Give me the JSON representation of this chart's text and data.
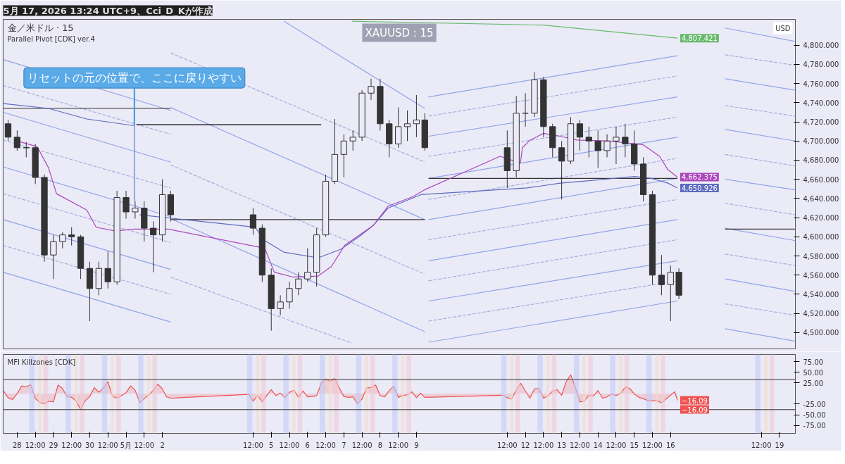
{
  "chart_data": [
    {
      "type": "candlestick",
      "title": "XAUUSD : 15",
      "subtitle": "金／米ドル · 15",
      "annotations": [
        "5月 17, 2026 13:24 UTC+9、Cci_D_Kが作成",
        "Parallel Pivot [CDK] ver.4",
        "USD",
        {
          "text": "リセットの元の位置で、ここに戻りやすい",
          "x": "2026-05-01T05:30",
          "y": 4717
        },
        {
          "text": "4,807.421",
          "x": "2026-05-16T04:30",
          "y": 4807.421
        },
        {
          "text": "4,662.375",
          "x": "2026-05-16T04:30",
          "y": 4662.375
        },
        {
          "text": "4,650.926",
          "x": "2026-05-16T04:30",
          "y": 4650.926
        }
      ],
      "x": [
        "2026-04-27T18:00",
        "2026-04-28",
        "2026-04-28T06:00",
        "2026-04-28T12:00",
        "2026-04-28T18:00",
        "2026-04-29",
        "2026-04-29T06:00",
        "2026-04-29T12:00",
        "2026-04-29T18:00",
        "2026-04-30",
        "2026-04-30T06:00",
        "2026-04-30T12:00",
        "2026-04-30T18:00",
        "2026-05-01",
        "2026-05-01T06:00",
        "2026-05-01T12:00",
        "2026-05-01T18:00",
        "2026-05-02",
        "2026-05-02T05:30",
        "2026-05-04T12:00",
        "2026-05-04T18:00",
        "2026-05-05",
        "2026-05-05T06:00",
        "2026-05-05T12:00",
        "2026-05-05T18:00",
        "2026-05-06",
        "2026-05-06T06:00",
        "2026-05-06T12:00",
        "2026-05-06T18:00",
        "2026-05-07",
        "2026-05-07T06:00",
        "2026-05-07T12:00",
        "2026-05-07T18:00",
        "2026-05-08",
        "2026-05-08T06:00",
        "2026-05-08T12:00",
        "2026-05-08T18:00",
        "2026-05-09",
        "2026-05-09T05:30",
        "2026-05-11T12:00",
        "2026-05-11T18:00",
        "2026-05-12",
        "2026-05-12T06:00",
        "2026-05-12T12:00",
        "2026-05-12T18:00",
        "2026-05-13",
        "2026-05-13T06:00",
        "2026-05-13T12:00",
        "2026-05-13T18:00",
        "2026-05-14",
        "2026-05-14T06:00",
        "2026-05-14T12:00",
        "2026-05-14T18:00",
        "2026-05-15",
        "2026-05-15T06:00",
        "2026-05-15T12:00",
        "2026-05-15T18:00",
        "2026-05-16",
        "2026-05-16T05:30"
      ],
      "ohlc": [
        [
          4718,
          4722,
          4700,
          4704
        ],
        [
          4704,
          4711,
          4690,
          4693
        ],
        [
          4693,
          4699,
          4683,
          4693
        ],
        [
          4693,
          4697,
          4655,
          4662
        ],
        [
          4662,
          4665,
          4574,
          4581
        ],
        [
          4581,
          4602,
          4556,
          4595
        ],
        [
          4595,
          4605,
          4588,
          4602
        ],
        [
          4602,
          4610,
          4591,
          4600
        ],
        [
          4600,
          4602,
          4556,
          4567
        ],
        [
          4567,
          4574,
          4512,
          4546
        ],
        [
          4546,
          4574,
          4539,
          4567
        ],
        [
          4567,
          4585,
          4546,
          4553
        ],
        [
          4553,
          4648,
          4550,
          4641
        ],
        [
          4641,
          4648,
          4619,
          4626
        ],
        [
          4626,
          4637,
          4619,
          4630
        ],
        [
          4630,
          4637,
          4595,
          4609
        ],
        [
          4609,
          4616,
          4563,
          4602
        ],
        [
          4602,
          4660,
          4595,
          4644
        ],
        [
          4644,
          4648,
          4616,
          4623
        ],
        [
          4623,
          4630,
          4602,
          4609
        ],
        [
          4609,
          4613,
          4553,
          4560
        ],
        [
          4560,
          4567,
          4502,
          4525
        ],
        [
          4525,
          4539,
          4518,
          4532
        ],
        [
          4532,
          4553,
          4525,
          4546
        ],
        [
          4546,
          4563,
          4539,
          4556
        ],
        [
          4556,
          4588,
          4553,
          4563
        ],
        [
          4563,
          4609,
          4548,
          4602
        ],
        [
          4602,
          4665,
          4600,
          4658
        ],
        [
          4658,
          4723,
          4655,
          4686
        ],
        [
          4686,
          4707,
          4662,
          4700
        ],
        [
          4700,
          4711,
          4690,
          4704
        ],
        [
          4704,
          4753,
          4700,
          4750
        ],
        [
          4750,
          4765,
          4743,
          4757
        ],
        [
          4757,
          4765,
          4711,
          4718
        ],
        [
          4718,
          4722,
          4683,
          4697
        ],
        [
          4697,
          4735,
          4693,
          4715
        ],
        [
          4715,
          4732,
          4700,
          4718
        ],
        [
          4718,
          4748,
          4704,
          4722
        ],
        [
          4722,
          4729,
          4690,
          4693
        ],
        [
          4693,
          4711,
          4651,
          4669
        ],
        [
          4669,
          4747,
          4662,
          4729
        ],
        [
          4729,
          4750,
          4715,
          4729
        ],
        [
          4729,
          4772,
          4725,
          4764
        ],
        [
          4764,
          4767,
          4704,
          4715
        ],
        [
          4715,
          4718,
          4683,
          4693
        ],
        [
          4693,
          4700,
          4639,
          4679
        ],
        [
          4679,
          4725,
          4676,
          4718
        ],
        [
          4718,
          4722,
          4690,
          4704
        ],
        [
          4704,
          4715,
          4683,
          4700
        ],
        [
          4700,
          4711,
          4672,
          4690
        ],
        [
          4690,
          4707,
          4683,
          4700
        ],
        [
          4700,
          4715,
          4676,
          4704
        ],
        [
          4704,
          4718,
          4683,
          4697
        ],
        [
          4697,
          4711,
          4669,
          4676
        ],
        [
          4676,
          4683,
          4637,
          4644
        ],
        [
          4644,
          4648,
          4550,
          4560
        ],
        [
          4560,
          4581,
          4539,
          4550
        ],
        [
          4550,
          4570,
          4512,
          4563
        ],
        [
          4563,
          4567,
          4535,
          4539
        ]
      ],
      "color": "#333333",
      "series": [
        {
          "type": "line",
          "color": "#8fa6ea",
          "x": [
            "2026-04-27T14:45",
            "2026-05-02T05:30"
          ],
          "values": [
            4785,
            4732
          ]
        },
        {
          "type": "line",
          "color": "#8fa6ea",
          "x": [
            "2026-04-27T14:45",
            "2026-05-02T05:30"
          ],
          "values": [
            4730,
            4678
          ]
        },
        {
          "type": "line",
          "color": "#8fa6ea",
          "x": [
            "2026-04-27T14:45",
            "2026-05-02T05:30"
          ],
          "values": [
            4673,
            4621
          ]
        },
        {
          "type": "line",
          "color": "#8fa6ea",
          "x": [
            "2026-04-27T14:45",
            "2026-05-02T05:30"
          ],
          "values": [
            4618,
            4566
          ]
        },
        {
          "type": "line",
          "color": "#8fa6ea",
          "x": [
            "2026-04-27T14:45",
            "2026-05-02T05:30"
          ],
          "values": [
            4563,
            4511
          ]
        },
        {
          "type": "line",
          "color": "#8fa6ea",
          "x": [
            "2026-05-05T08:30",
            "2026-05-09T05:30"
          ],
          "values": [
            4825,
            4734
          ]
        },
        {
          "type": "line",
          "color": "#8fa6ea",
          "x": [
            "2026-05-02T05:30",
            "2026-05-09T05:30"
          ],
          "values": [
            4735,
            4618
          ]
        },
        {
          "type": "line",
          "color": "#8fa6ea",
          "x": [
            "2026-05-02T05:30",
            "2026-05-09T05:30"
          ],
          "values": [
            4619,
            4501
          ]
        },
        {
          "type": "line",
          "color": "#8fa6ea",
          "x": [
            "2026-05-09T08:00",
            "2026-05-16T04:30"
          ],
          "values": [
            4746,
            4789
          ]
        },
        {
          "type": "line",
          "color": "#8fa6ea",
          "x": [
            "2026-05-09T08:00",
            "2026-05-16T04:30"
          ],
          "values": [
            4705,
            4746
          ]
        },
        {
          "type": "line",
          "color": "#8fa6ea",
          "x": [
            "2026-05-09T08:00",
            "2026-05-16T04:30"
          ],
          "values": [
            4661,
            4704
          ]
        },
        {
          "type": "line",
          "color": "#8fa6ea",
          "x": [
            "2026-05-09T08:00",
            "2026-05-16T04:30"
          ],
          "values": [
            4618,
            4661
          ]
        },
        {
          "type": "line",
          "color": "#8fa6ea",
          "x": [
            "2026-05-09T08:00",
            "2026-05-16T04:30"
          ],
          "values": [
            4575,
            4618
          ]
        },
        {
          "type": "line",
          "color": "#8fa6ea",
          "x": [
            "2026-05-09T08:00",
            "2026-05-16T04:30"
          ],
          "values": [
            4533,
            4575
          ]
        },
        {
          "type": "line",
          "color": "#8fa6ea",
          "x": [
            "2026-05-09T08:00",
            "2026-05-16T04:30"
          ],
          "values": [
            4490,
            4533
          ]
        },
        {
          "type": "line",
          "color": "#8fa6ea",
          "x": [
            "2026-05-17T12:00",
            "2026-05-19T10:30"
          ],
          "values": [
            4818,
            4804
          ]
        },
        {
          "type": "line",
          "color": "#8fa6ea",
          "x": [
            "2026-05-17T12:00",
            "2026-05-19T10:30"
          ],
          "values": [
            4765,
            4753
          ]
        },
        {
          "type": "line",
          "color": "#8fa6ea",
          "x": [
            "2026-05-17T12:00",
            "2026-05-19T10:30"
          ],
          "values": [
            4712,
            4700
          ]
        },
        {
          "type": "line",
          "color": "#8fa6ea",
          "x": [
            "2026-05-17T12:00",
            "2026-05-19T10:30"
          ],
          "values": [
            4660,
            4649
          ]
        },
        {
          "type": "line",
          "color": "#8fa6ea",
          "x": [
            "2026-05-17T12:00",
            "2026-05-19T10:30"
          ],
          "values": [
            4609,
            4596
          ]
        },
        {
          "type": "line",
          "color": "#8fa6ea",
          "x": [
            "2026-05-17T12:00",
            "2026-05-19T10:30"
          ],
          "values": [
            4556,
            4543
          ]
        },
        {
          "type": "line",
          "color": "#8fa6ea",
          "x": [
            "2026-05-17T12:00",
            "2026-05-19T10:30"
          ],
          "values": [
            4504,
            4491
          ]
        },
        {
          "type": "line",
          "color": "#a3afde",
          "line_style": "dashed",
          "x": [
            "2026-04-27T14:45",
            "2026-05-02T05:30"
          ],
          "values": [
            4758,
            4707
          ]
        },
        {
          "type": "line",
          "color": "#a3afde",
          "line_style": "dashed",
          "x": [
            "2026-04-27T14:45",
            "2026-05-02T05:30"
          ],
          "values": [
            4701,
            4651
          ]
        },
        {
          "type": "line",
          "color": "#a3afde",
          "line_style": "dashed",
          "x": [
            "2026-04-27T14:45",
            "2026-05-02T05:30"
          ],
          "values": [
            4645,
            4594
          ]
        },
        {
          "type": "line",
          "color": "#a3afde",
          "line_style": "dashed",
          "x": [
            "2026-04-27T14:45",
            "2026-05-02T05:30"
          ],
          "values": [
            4591,
            4540
          ]
        },
        {
          "type": "line",
          "color": "#a3afde",
          "line_style": "dashed",
          "x": [
            "2026-05-02T05:30",
            "2026-05-09T05:30"
          ],
          "values": [
            4792,
            4678
          ]
        },
        {
          "type": "line",
          "color": "#a3afde",
          "line_style": "dashed",
          "x": [
            "2026-05-02T05:30",
            "2026-05-09T05:30"
          ],
          "values": [
            4675,
            4561
          ]
        },
        {
          "type": "line",
          "color": "#a3afde",
          "line_style": "dashed",
          "x": [
            "2026-05-02T05:30",
            "2026-05-07T05:15"
          ],
          "values": [
            4558,
            4489
          ]
        },
        {
          "type": "line",
          "color": "#a3afde",
          "line_style": "dashed",
          "x": [
            "2026-05-09T08:00",
            "2026-05-16T04:30"
          ],
          "values": [
            4726,
            4768
          ]
        },
        {
          "type": "line",
          "color": "#a3afde",
          "line_style": "dashed",
          "x": [
            "2026-05-09T08:00",
            "2026-05-16T04:30"
          ],
          "values": [
            4684,
            4725
          ]
        },
        {
          "type": "line",
          "color": "#a3afde",
          "line_style": "dashed",
          "x": [
            "2026-05-09T08:00",
            "2026-05-16T04:30"
          ],
          "values": [
            4639,
            4682
          ]
        },
        {
          "type": "line",
          "color": "#a3afde",
          "line_style": "dashed",
          "x": [
            "2026-05-09T08:00",
            "2026-05-16T04:30"
          ],
          "values": [
            4597,
            4639
          ]
        },
        {
          "type": "line",
          "color": "#a3afde",
          "line_style": "dashed",
          "x": [
            "2026-05-09T08:00",
            "2026-05-16T04:30"
          ],
          "values": [
            4554,
            4597
          ]
        },
        {
          "type": "line",
          "color": "#a3afde",
          "line_style": "dashed",
          "x": [
            "2026-05-09T08:00",
            "2026-05-16T04:30"
          ],
          "values": [
            4512,
            4554
          ]
        },
        {
          "type": "line",
          "color": "#a3afde",
          "line_style": "dashed",
          "x": [
            "2026-05-17T12:00",
            "2026-05-19T10:30"
          ],
          "values": [
            4790,
            4779
          ]
        },
        {
          "type": "line",
          "color": "#a3afde",
          "line_style": "dashed",
          "x": [
            "2026-05-17T12:00",
            "2026-05-19T10:30"
          ],
          "values": [
            4737,
            4726
          ]
        },
        {
          "type": "line",
          "color": "#a3afde",
          "line_style": "dashed",
          "x": [
            "2026-05-17T12:00",
            "2026-05-19T10:30"
          ],
          "values": [
            4686,
            4674
          ]
        },
        {
          "type": "line",
          "color": "#a3afde",
          "line_style": "dashed",
          "x": [
            "2026-05-17T12:00",
            "2026-05-19T10:30"
          ],
          "values": [
            4635,
            4623
          ]
        },
        {
          "type": "line",
          "color": "#a3afde",
          "line_style": "dashed",
          "x": [
            "2026-05-17T12:00",
            "2026-05-19T10:30"
          ],
          "values": [
            4582,
            4570
          ]
        },
        {
          "type": "line",
          "color": "#a3afde",
          "line_style": "dashed",
          "x": [
            "2026-05-17T12:00",
            "2026-05-19T10:30"
          ],
          "values": [
            4530,
            4518
          ]
        },
        {
          "type": "line",
          "color": "#333333",
          "x": [
            "2026-04-27T14:45",
            "2026-05-02T05:30"
          ],
          "values": [
            4734,
            4734
          ]
        },
        {
          "type": "line",
          "color": "#333333",
          "x": [
            "2026-05-02T05:30",
            "2026-05-09T05:30"
          ],
          "values": [
            4618,
            4618
          ]
        },
        {
          "type": "line",
          "color": "#333333",
          "x": [
            "2026-05-09T08:00",
            "2026-05-16T04:30"
          ],
          "values": [
            4661,
            4661
          ]
        },
        {
          "type": "line",
          "color": "#333333",
          "x": [
            "2026-05-17T12:00",
            "2026-05-19T10:30"
          ],
          "values": [
            4608,
            4608
          ]
        },
        {
          "type": "line",
          "color": "#5a7ad8",
          "x": [
            "2026-05-01T05:30",
            "2026-05-01T05:30"
          ],
          "values": [
            4717,
            4637
          ]
        },
        {
          "type": "line",
          "color": "#000000",
          "x": [
            "2026-05-01T07:00",
            "2026-05-06T09:00"
          ],
          "values": [
            4717,
            4717
          ]
        },
        {
          "type": "line",
          "color": "#66bb6a",
          "x": [
            "2026-05-07T05:15",
            "2026-05-12T12:00",
            "2026-05-16T04:30"
          ],
          "values": [
            4825,
            4821,
            4807.421
          ]
        },
        {
          "type": "line",
          "color": "#5c6bc0",
          "x": [
            "2026-04-27T15:00",
            "2026-04-28T20:45",
            "2026-04-29T22:00",
            "2026-05-01T05:30"
          ],
          "values": [
            4739,
            4734,
            4723,
            4716
          ]
        },
        {
          "type": "line",
          "color": "#5c6bc0",
          "x": [
            "2026-05-01T09:00",
            "2026-05-04T13:15",
            "2026-05-04T19:45",
            "2026-05-05T08:15",
            "2026-05-06T07:00",
            "2026-05-06T22:00",
            "2026-05-07T10:45",
            "2026-05-07T19:30",
            "2026-05-08T05:15",
            "2026-05-09T03:00",
            "2026-05-12T01:15",
            "2026-05-12T23:00",
            "2026-05-13T21:00",
            "2026-05-15T00:15",
            "2026-05-15T11:30",
            "2026-05-15T22:15",
            "2026-05-16T04:30"
          ],
          "values": [
            4623,
            4610,
            4596,
            4584,
            4578,
            4587,
            4601,
            4612,
            4630,
            4644,
            4651,
            4656,
            4659,
            4663,
            4661,
            4656,
            4650.926
          ]
        },
        {
          "type": "line",
          "color": "#ab47bc",
          "x": [
            "2026-04-27T22:00",
            "2026-04-28T13:15",
            "2026-04-28T20:45",
            "2026-04-29T02:00",
            "2026-04-29T22:00",
            "2026-04-30T04:15",
            "2026-04-30T17:00",
            "2026-05-01T05:30",
            "2026-05-02T04:00",
            "2026-05-04T19:45",
            "2026-05-05T02:00",
            "2026-05-05T14:30",
            "2026-05-06T07:00",
            "2026-05-06T15:45",
            "2026-05-07T00:30",
            "2026-05-07T19:30",
            "2026-05-08T05:15",
            "2026-05-08T21:45",
            "2026-05-09T05:15",
            "2026-05-11T07:15",
            "2026-05-11T20:45",
            "2026-05-11T22:00",
            "2026-05-12T03:15",
            "2026-05-12T12:00",
            "2026-05-12T23:00",
            "2026-05-13T10:15",
            "2026-05-14T08:00",
            "2026-05-15T06:00",
            "2026-05-15T16:45",
            "2026-05-15T22:15",
            "2026-05-16T04:30"
          ],
          "values": [
            4701,
            4694,
            4672,
            4645,
            4628,
            4610,
            4606,
            4608,
            4608,
            4588,
            4563,
            4558,
            4559,
            4569,
            4591,
            4612,
            4632,
            4642,
            4649,
            4684,
            4677,
            4693,
            4701,
            4708,
            4705,
            4701,
            4700,
            4696,
            4684,
            4670,
            4662.375
          ]
        }
      ],
      "xlim": [
        "2026-04-27T14:45",
        "2026-05-19T10:30"
      ],
      "ylim": [
        4483,
        4827
      ],
      "yticks": [
        {
          "value": 4500,
          "label": "4,500.000"
        },
        {
          "value": 4520,
          "label": "4,520.000"
        },
        {
          "value": 4540,
          "label": "4,540.000"
        },
        {
          "value": 4560,
          "label": "4,560.000"
        },
        {
          "value": 4580,
          "label": "4,580.000"
        },
        {
          "value": 4600,
          "label": "4,600.000"
        },
        {
          "value": 4620,
          "label": "4,620.000"
        },
        {
          "value": 4640,
          "label": "4,640.000"
        },
        {
          "value": 4660,
          "label": "4,660.000"
        },
        {
          "value": 4680,
          "label": "4,680.000"
        },
        {
          "value": 4700,
          "label": "4,700.000"
        },
        {
          "value": 4720,
          "label": "4,720.000"
        },
        {
          "value": 4740,
          "label": "4,740.000"
        },
        {
          "value": 4760,
          "label": "4,760.000"
        },
        {
          "value": 4780,
          "label": "4,780.000"
        },
        {
          "value": 4800,
          "label": "4,800.000"
        }
      ],
      "tick_labels": "y"
    },
    {
      "type": "area",
      "title": "MFI Killzones [CDK]",
      "annotations": [
        "−16.09",
        "−16.09"
      ],
      "series": [
        {
          "color": "#ef5350",
          "x": [
            "2026-04-27T15:00",
            "2026-04-27T18:00",
            "2026-04-27T21:00",
            "2026-04-28T00:00",
            "2026-04-28T03:00",
            "2026-04-28T06:00",
            "2026-04-28T09:00",
            "2026-04-28T12:00",
            "2026-04-28T15:00",
            "2026-04-28T18:00",
            "2026-04-28T21:00",
            "2026-04-29T00:00",
            "2026-04-29T03:00",
            "2026-04-29T06:00",
            "2026-04-29T09:00",
            "2026-04-29T12:00",
            "2026-04-29T15:00",
            "2026-04-29T18:00",
            "2026-04-29T21:00",
            "2026-04-30T00:00",
            "2026-04-30T03:00",
            "2026-04-30T06:00",
            "2026-04-30T09:00",
            "2026-04-30T12:00",
            "2026-04-30T15:00",
            "2026-04-30T18:00",
            "2026-04-30T21:00",
            "2026-05-01T00:00",
            "2026-05-01T03:00",
            "2026-05-01T06:00",
            "2026-05-01T09:00",
            "2026-05-01T12:00",
            "2026-05-01T15:00",
            "2026-05-01T18:00",
            "2026-05-01T21:00",
            "2026-05-02T00:00",
            "2026-05-02T02:45",
            "2026-05-02T05:30",
            "2026-05-04T09:15",
            "2026-05-04T12:00",
            "2026-05-04T15:00",
            "2026-05-04T18:00",
            "2026-05-04T21:00",
            "2026-05-05T00:00",
            "2026-05-05T03:00",
            "2026-05-05T06:00",
            "2026-05-05T09:00",
            "2026-05-05T12:00",
            "2026-05-05T15:00",
            "2026-05-05T18:00",
            "2026-05-05T21:00",
            "2026-05-06T00:00",
            "2026-05-06T03:00",
            "2026-05-06T06:00",
            "2026-05-06T09:00",
            "2026-05-06T12:00",
            "2026-05-06T15:00",
            "2026-05-06T18:00",
            "2026-05-06T21:00",
            "2026-05-07T00:00",
            "2026-05-07T03:00",
            "2026-05-07T06:00",
            "2026-05-07T09:00",
            "2026-05-07T12:00",
            "2026-05-07T15:00",
            "2026-05-07T18:00",
            "2026-05-07T21:00",
            "2026-05-08T00:00",
            "2026-05-08T03:00",
            "2026-05-08T06:00",
            "2026-05-08T09:00",
            "2026-05-08T12:00",
            "2026-05-08T15:00",
            "2026-05-08T18:00",
            "2026-05-08T21:00",
            "2026-05-09T00:00",
            "2026-05-09T02:45",
            "2026-05-09T05:30",
            "2026-05-11T09:15",
            "2026-05-11T12:00",
            "2026-05-11T15:00",
            "2026-05-11T18:00",
            "2026-05-11T21:00",
            "2026-05-12T00:00",
            "2026-05-12T03:00",
            "2026-05-12T06:00",
            "2026-05-12T09:00",
            "2026-05-12T12:00",
            "2026-05-12T15:00",
            "2026-05-12T18:00",
            "2026-05-12T21:00",
            "2026-05-13T00:00",
            "2026-05-13T03:00",
            "2026-05-13T06:00",
            "2026-05-13T09:00",
            "2026-05-13T12:00",
            "2026-05-13T15:00",
            "2026-05-13T18:00",
            "2026-05-13T21:00",
            "2026-05-14T00:00",
            "2026-05-14T03:00",
            "2026-05-14T06:00",
            "2026-05-14T09:00",
            "2026-05-14T12:00",
            "2026-05-14T15:00",
            "2026-05-14T18:00",
            "2026-05-14T21:00",
            "2026-05-15T00:00",
            "2026-05-15T03:00",
            "2026-05-15T06:00",
            "2026-05-15T09:00",
            "2026-05-15T12:00",
            "2026-05-15T15:00",
            "2026-05-15T18:00",
            "2026-05-15T21:00",
            "2026-05-16T00:00",
            "2026-05-16T02:45",
            "2026-05-16T04:30"
          ],
          "values": [
            6,
            -10,
            -14,
            0,
            18,
            16,
            21,
            -12,
            -21,
            -24,
            -18,
            -20,
            20,
            12,
            -8,
            -9,
            -18,
            -38,
            -17,
            -7,
            14,
            3,
            13,
            28,
            -7,
            -11,
            -5,
            2,
            18,
            8,
            -22,
            -12,
            -4,
            8,
            22,
            11,
            -8,
            -11,
            -2,
            -18,
            -5,
            -20,
            -5,
            9,
            -5,
            1,
            -10,
            3,
            8,
            -9,
            6,
            -8,
            -7,
            -5,
            24,
            34,
            29,
            36,
            13,
            -7,
            -9,
            -8,
            -24,
            -13,
            13,
            14,
            20,
            -5,
            -8,
            7,
            17,
            -9,
            -5,
            -3,
            4,
            -10,
            1,
            -9,
            -4,
            -10,
            -13,
            9,
            24,
            6,
            -11,
            11,
            12,
            -11,
            -6,
            6,
            9,
            -4,
            28,
            44,
            15,
            -20,
            -18,
            -4,
            -6,
            7,
            -11,
            -8,
            -1,
            -5,
            1,
            15,
            12,
            -1,
            -9,
            -12,
            -17,
            -17,
            -17,
            -22,
            -13,
            -4,
            4,
            -16.09
          ]
        }
      ],
      "ref_lines": [
        {
          "axis": "y",
          "value": 33,
          "color": "#333333"
        },
        {
          "axis": "y",
          "value": -38,
          "color": "#333333"
        }
      ],
      "bands": [
        {
          "axis": "x",
          "from": "2026-04-28T08:00",
          "to": "2026-04-28T11:30",
          "color": "#c3ccf5"
        },
        {
          "axis": "x",
          "from": "2026-04-28T14:00",
          "to": "2026-04-28T16:00",
          "color": "#f3dcc6"
        },
        {
          "axis": "x",
          "from": "2026-04-28T17:30",
          "to": "2026-04-28T20:30",
          "color": "#f0c9d4"
        },
        {
          "axis": "x",
          "from": "2026-04-29T08:00",
          "to": "2026-04-29T11:30",
          "color": "#c3ccf5"
        },
        {
          "axis": "x",
          "from": "2026-04-29T14:00",
          "to": "2026-04-29T16:00",
          "color": "#f3dcc6"
        },
        {
          "axis": "x",
          "from": "2026-04-29T17:30",
          "to": "2026-04-29T20:30",
          "color": "#f0c9d4"
        },
        {
          "axis": "x",
          "from": "2026-04-30T08:00",
          "to": "2026-04-30T11:30",
          "color": "#c3ccf5"
        },
        {
          "axis": "x",
          "from": "2026-04-30T14:00",
          "to": "2026-04-30T16:00",
          "color": "#f3dcc6"
        },
        {
          "axis": "x",
          "from": "2026-04-30T17:30",
          "to": "2026-04-30T20:30",
          "color": "#f0c9d4"
        },
        {
          "axis": "x",
          "from": "2026-05-01T08:00",
          "to": "2026-05-01T11:30",
          "color": "#c3ccf5"
        },
        {
          "axis": "x",
          "from": "2026-05-01T14:00",
          "to": "2026-05-01T16:00",
          "color": "#f3dcc6"
        },
        {
          "axis": "x",
          "from": "2026-05-01T17:30",
          "to": "2026-05-01T20:30",
          "color": "#f0c9d4"
        },
        {
          "axis": "x",
          "from": "2026-05-04T08:00",
          "to": "2026-05-04T11:30",
          "color": "#c3ccf5"
        },
        {
          "axis": "x",
          "from": "2026-05-04T14:00",
          "to": "2026-05-04T16:00",
          "color": "#f3dcc6"
        },
        {
          "axis": "x",
          "from": "2026-05-04T17:30",
          "to": "2026-05-04T20:30",
          "color": "#f0c9d4"
        },
        {
          "axis": "x",
          "from": "2026-05-05T08:00",
          "to": "2026-05-05T11:30",
          "color": "#c3ccf5"
        },
        {
          "axis": "x",
          "from": "2026-05-05T14:00",
          "to": "2026-05-05T16:00",
          "color": "#f3dcc6"
        },
        {
          "axis": "x",
          "from": "2026-05-05T17:30",
          "to": "2026-05-05T20:30",
          "color": "#f0c9d4"
        },
        {
          "axis": "x",
          "from": "2026-05-06T08:00",
          "to": "2026-05-06T11:30",
          "color": "#c3ccf5"
        },
        {
          "axis": "x",
          "from": "2026-05-06T14:00",
          "to": "2026-05-06T16:00",
          "color": "#f3dcc6"
        },
        {
          "axis": "x",
          "from": "2026-05-06T17:30",
          "to": "2026-05-06T20:30",
          "color": "#f0c9d4"
        },
        {
          "axis": "x",
          "from": "2026-05-07T08:00",
          "to": "2026-05-07T11:30",
          "color": "#c3ccf5"
        },
        {
          "axis": "x",
          "from": "2026-05-07T14:00",
          "to": "2026-05-07T16:00",
          "color": "#f3dcc6"
        },
        {
          "axis": "x",
          "from": "2026-05-07T17:30",
          "to": "2026-05-07T20:30",
          "color": "#f0c9d4"
        },
        {
          "axis": "x",
          "from": "2026-05-08T08:00",
          "to": "2026-05-08T11:30",
          "color": "#c3ccf5"
        },
        {
          "axis": "x",
          "from": "2026-05-08T14:00",
          "to": "2026-05-08T16:00",
          "color": "#f3dcc6"
        },
        {
          "axis": "x",
          "from": "2026-05-08T17:30",
          "to": "2026-05-08T20:30",
          "color": "#f0c9d4"
        },
        {
          "axis": "x",
          "from": "2026-05-11T08:00",
          "to": "2026-05-11T11:30",
          "color": "#c3ccf5"
        },
        {
          "axis": "x",
          "from": "2026-05-11T14:00",
          "to": "2026-05-11T16:00",
          "color": "#f3dcc6"
        },
        {
          "axis": "x",
          "from": "2026-05-11T17:30",
          "to": "2026-05-11T20:30",
          "color": "#f0c9d4"
        },
        {
          "axis": "x",
          "from": "2026-05-12T08:00",
          "to": "2026-05-12T11:30",
          "color": "#c3ccf5"
        },
        {
          "axis": "x",
          "from": "2026-05-12T14:00",
          "to": "2026-05-12T16:00",
          "color": "#f3dcc6"
        },
        {
          "axis": "x",
          "from": "2026-05-12T17:30",
          "to": "2026-05-12T20:30",
          "color": "#f0c9d4"
        },
        {
          "axis": "x",
          "from": "2026-05-13T08:00",
          "to": "2026-05-13T11:30",
          "color": "#c3ccf5"
        },
        {
          "axis": "x",
          "from": "2026-05-13T14:00",
          "to": "2026-05-13T16:00",
          "color": "#f3dcc6"
        },
        {
          "axis": "x",
          "from": "2026-05-13T17:30",
          "to": "2026-05-13T20:30",
          "color": "#f0c9d4"
        },
        {
          "axis": "x",
          "from": "2026-05-14T08:00",
          "to": "2026-05-14T11:30",
          "color": "#c3ccf5"
        },
        {
          "axis": "x",
          "from": "2026-05-14T14:00",
          "to": "2026-05-14T16:00",
          "color": "#f3dcc6"
        },
        {
          "axis": "x",
          "from": "2026-05-14T17:30",
          "to": "2026-05-14T20:30",
          "color": "#f0c9d4"
        },
        {
          "axis": "x",
          "from": "2026-05-15T08:00",
          "to": "2026-05-15T11:30",
          "color": "#c3ccf5"
        },
        {
          "axis": "x",
          "from": "2026-05-15T14:00",
          "to": "2026-05-15T16:00",
          "color": "#f3dcc6"
        },
        {
          "axis": "x",
          "from": "2026-05-15T17:30",
          "to": "2026-05-15T20:30",
          "color": "#f0c9d4"
        },
        {
          "axis": "x",
          "from": "2026-05-18T08:00",
          "to": "2026-05-18T11:30",
          "color": "#c3ccf5"
        },
        {
          "axis": "x",
          "from": "2026-05-18T14:00",
          "to": "2026-05-18T16:00",
          "color": "#f3dcc6"
        },
        {
          "axis": "x",
          "from": "2026-05-18T17:30",
          "to": "2026-05-18T20:30",
          "color": "#f0c9d4"
        }
      ],
      "xlim": [
        "2026-04-27T14:45",
        "2026-05-19T10:30"
      ],
      "ylim": [
        -94,
        92
      ],
      "xticks": [
        {
          "value": "2026-04-28",
          "label": "28"
        },
        {
          "value": "2026-04-28T12:00",
          "label": "12:00"
        },
        {
          "value": "2026-04-29",
          "label": "29"
        },
        {
          "value": "2026-04-29T12:00",
          "label": "12:00"
        },
        {
          "value": "2026-04-30",
          "label": "30"
        },
        {
          "value": "2026-04-30T12:00",
          "label": "12:00"
        },
        {
          "value": "2026-05-01",
          "label": "5月"
        },
        {
          "value": "2026-05-01T12:00",
          "label": "12:00"
        },
        {
          "value": "2026-05-02",
          "label": "2"
        },
        {
          "value": "2026-05-04T12:00",
          "label": "12:00"
        },
        {
          "value": "2026-05-05",
          "label": "5"
        },
        {
          "value": "2026-05-05T12:00",
          "label": "12:00"
        },
        {
          "value": "2026-05-06",
          "label": "6"
        },
        {
          "value": "2026-05-06T12:00",
          "label": "12:00"
        },
        {
          "value": "2026-05-07",
          "label": "7"
        },
        {
          "value": "2026-05-07T12:00",
          "label": "12:00"
        },
        {
          "value": "2026-05-08",
          "label": "8"
        },
        {
          "value": "2026-05-08T12:00",
          "label": "12:00"
        },
        {
          "value": "2026-05-09",
          "label": "9"
        },
        {
          "value": "2026-05-11T12:00",
          "label": "12:00"
        },
        {
          "value": "2026-05-12",
          "label": "12"
        },
        {
          "value": "2026-05-12T12:00",
          "label": "12:00"
        },
        {
          "value": "2026-05-13",
          "label": "13"
        },
        {
          "value": "2026-05-13T12:00",
          "label": "12:00"
        },
        {
          "value": "2026-05-14",
          "label": "14"
        },
        {
          "value": "2026-05-14T12:00",
          "label": "12:00"
        },
        {
          "value": "2026-05-15",
          "label": "15"
        },
        {
          "value": "2026-05-15T12:00",
          "label": "12:00"
        },
        {
          "value": "2026-05-16",
          "label": "16"
        },
        {
          "value": "2026-05-18T12:00",
          "label": "12:00"
        },
        {
          "value": "2026-05-19",
          "label": "19"
        }
      ],
      "yticks": [
        {
          "value": 75,
          "label": "75.00"
        },
        {
          "value": 50,
          "label": "50.00"
        },
        {
          "value": 25,
          "label": "25.00"
        },
        {
          "value": -25,
          "label": "-25.00"
        },
        {
          "value": -50,
          "label": "-50.00"
        },
        {
          "value": -75,
          "label": "-75.00"
        }
      ]
    }
  ]
}
